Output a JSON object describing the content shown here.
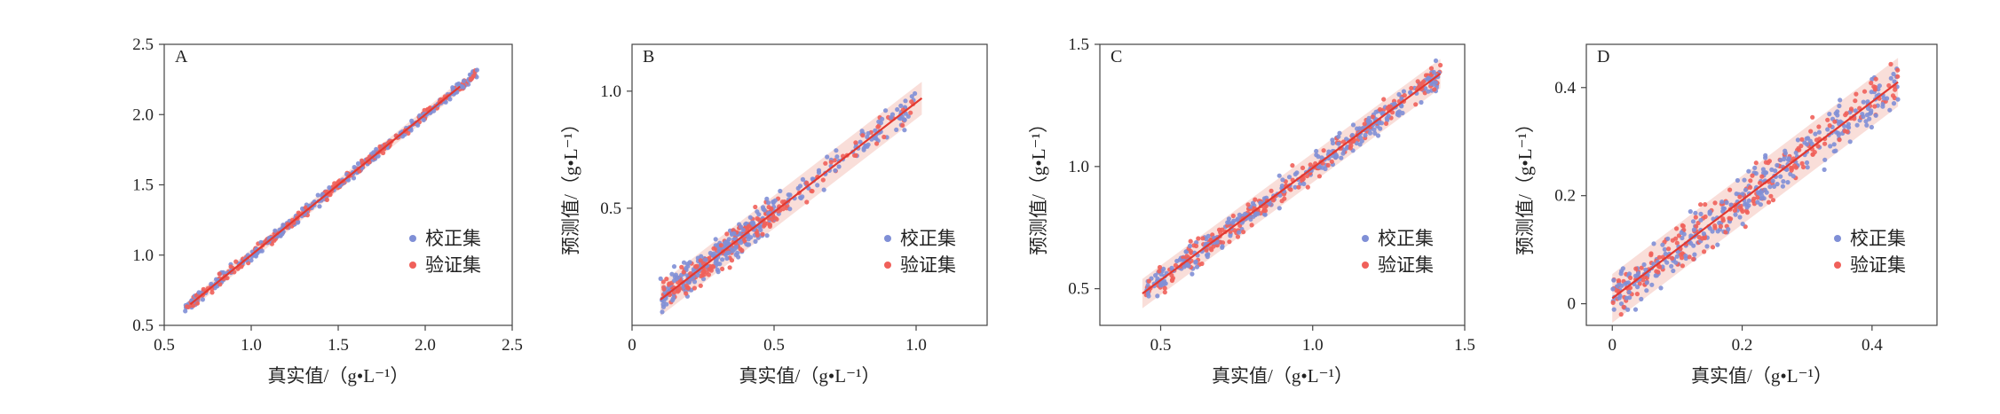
{
  "colors": {
    "calibration": "#7f8fd6",
    "validation": "#f0605a",
    "fit_line": "#e3382f",
    "band": "#f6cdc4"
  },
  "chart_data": [
    {
      "panel": "A",
      "type": "scatter",
      "xlabel": "真实值/（g•L⁻¹）",
      "ylabel": "",
      "xlim": [
        0.5,
        2.5
      ],
      "ylim": [
        0.5,
        2.5
      ],
      "xticks": [
        "0.5",
        "1.0",
        "1.5",
        "2.0",
        "2.5"
      ],
      "yticks": [
        "0.5",
        "1.0",
        "1.5",
        "2.0",
        "2.5"
      ],
      "legend": [
        "校正集",
        "验证集"
      ],
      "legend_position": "bottom-right",
      "fit_line": [
        [
          0.65,
          0.65
        ],
        [
          2.2,
          2.2
        ]
      ],
      "band_halfwidth": 0.04,
      "data_range": [
        0.62,
        2.3
      ],
      "noise": 0.025,
      "slope": 1.0,
      "intercept": 0.0
    },
    {
      "panel": "B",
      "type": "scatter",
      "xlabel": "真实值/（g•L⁻¹）",
      "ylabel": "预测值/（g•L⁻¹）",
      "xlim": [
        0.0,
        1.25
      ],
      "ylim": [
        0.0,
        1.2
      ],
      "xticks": [
        "0",
        "0.5",
        "1.0"
      ],
      "yticks": [
        "0.5",
        "1.0"
      ],
      "legend": [
        "校正集",
        "验证集"
      ],
      "legend_position": "bottom-right",
      "fit_line": [
        [
          0.1,
          0.11
        ],
        [
          1.02,
          0.97
        ]
      ],
      "band_halfwidth": 0.07,
      "data_range": [
        0.1,
        1.0
      ],
      "noise": 0.045,
      "slope": 0.935,
      "intercept": 0.017
    },
    {
      "panel": "C",
      "type": "scatter",
      "xlabel": "真实值/（g•L⁻¹）",
      "ylabel": "预测值/（g•L⁻¹）",
      "xlim": [
        0.3,
        1.5
      ],
      "ylim": [
        0.35,
        1.5
      ],
      "xticks": [
        "0.5",
        "1.0",
        "1.5"
      ],
      "yticks": [
        "0.5",
        "1.0",
        "1.5"
      ],
      "legend": [
        "校正集",
        "验证集"
      ],
      "legend_position": "bottom-right",
      "fit_line": [
        [
          0.44,
          0.48
        ],
        [
          1.42,
          1.38
        ]
      ],
      "band_halfwidth": 0.06,
      "data_range": [
        0.45,
        1.42
      ],
      "noise": 0.035,
      "slope": 0.918,
      "intercept": 0.076
    },
    {
      "panel": "D",
      "type": "scatter",
      "xlabel": "真实值/（g•L⁻¹）",
      "ylabel": "预测值/（g•L⁻¹）",
      "xlim": [
        -0.04,
        0.5
      ],
      "ylim": [
        -0.04,
        0.48
      ],
      "xticks": [
        "0",
        "0.2",
        "0.4"
      ],
      "yticks": [
        "0",
        "0.2",
        "0.4"
      ],
      "legend": [
        "校正集",
        "验证集"
      ],
      "legend_position": "bottom-right",
      "fit_line": [
        [
          0.0,
          0.01
        ],
        [
          0.44,
          0.41
        ]
      ],
      "band_halfwidth": 0.045,
      "data_range": [
        0.0,
        0.44
      ],
      "noise": 0.03,
      "slope": 0.91,
      "intercept": 0.01
    }
  ]
}
